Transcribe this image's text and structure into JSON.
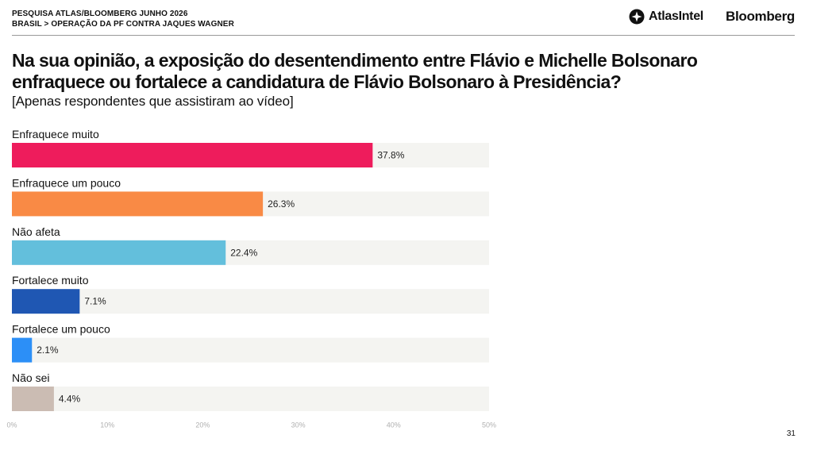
{
  "header": {
    "line1": "PESQUISA ATLAS/BLOOMBERG JUNHO 2026",
    "line2": "BRASIL > OPERAÇÃO DA PF CONTRA JAQUES WAGNER"
  },
  "logos": {
    "atlas_icon": "atlas-intel-logo-icon",
    "atlas": "AtlasIntel",
    "bloomberg": "Bloomberg"
  },
  "title": {
    "line1": "Na sua opinião, a exposição do desentendimento entre Flávio e Michelle Bolsonaro",
    "line2": "enfraquece ou fortalece a candidatura de Flávio Bolsonaro à Presidência?"
  },
  "subtitle": "[Apenas respondentes que assistiram ao vídeo]",
  "page_number": "31",
  "chart_data": {
    "type": "bar",
    "orientation": "horizontal",
    "categories": [
      "Enfraquece muito",
      "Enfraquece um pouco",
      "Não afeta",
      "Fortalece muito",
      "Fortalece um pouco",
      "Não sei"
    ],
    "values": [
      37.8,
      26.3,
      22.4,
      7.1,
      2.1,
      4.4
    ],
    "value_labels": [
      "37.8%",
      "26.3%",
      "22.4%",
      "7.1%",
      "2.1%",
      "4.4%"
    ],
    "colors": [
      "#ee1c5c",
      "#f98a45",
      "#63bfdc",
      "#1f57b3",
      "#2c8ff7",
      "#cbbcb3"
    ],
    "track_color": "#f4f4f1",
    "xlim": [
      0,
      50
    ],
    "xticks": [
      0,
      10,
      20,
      30,
      40,
      50
    ],
    "xtick_labels": [
      "0%",
      "10%",
      "20%",
      "30%",
      "40%",
      "50%"
    ],
    "grid": false
  }
}
